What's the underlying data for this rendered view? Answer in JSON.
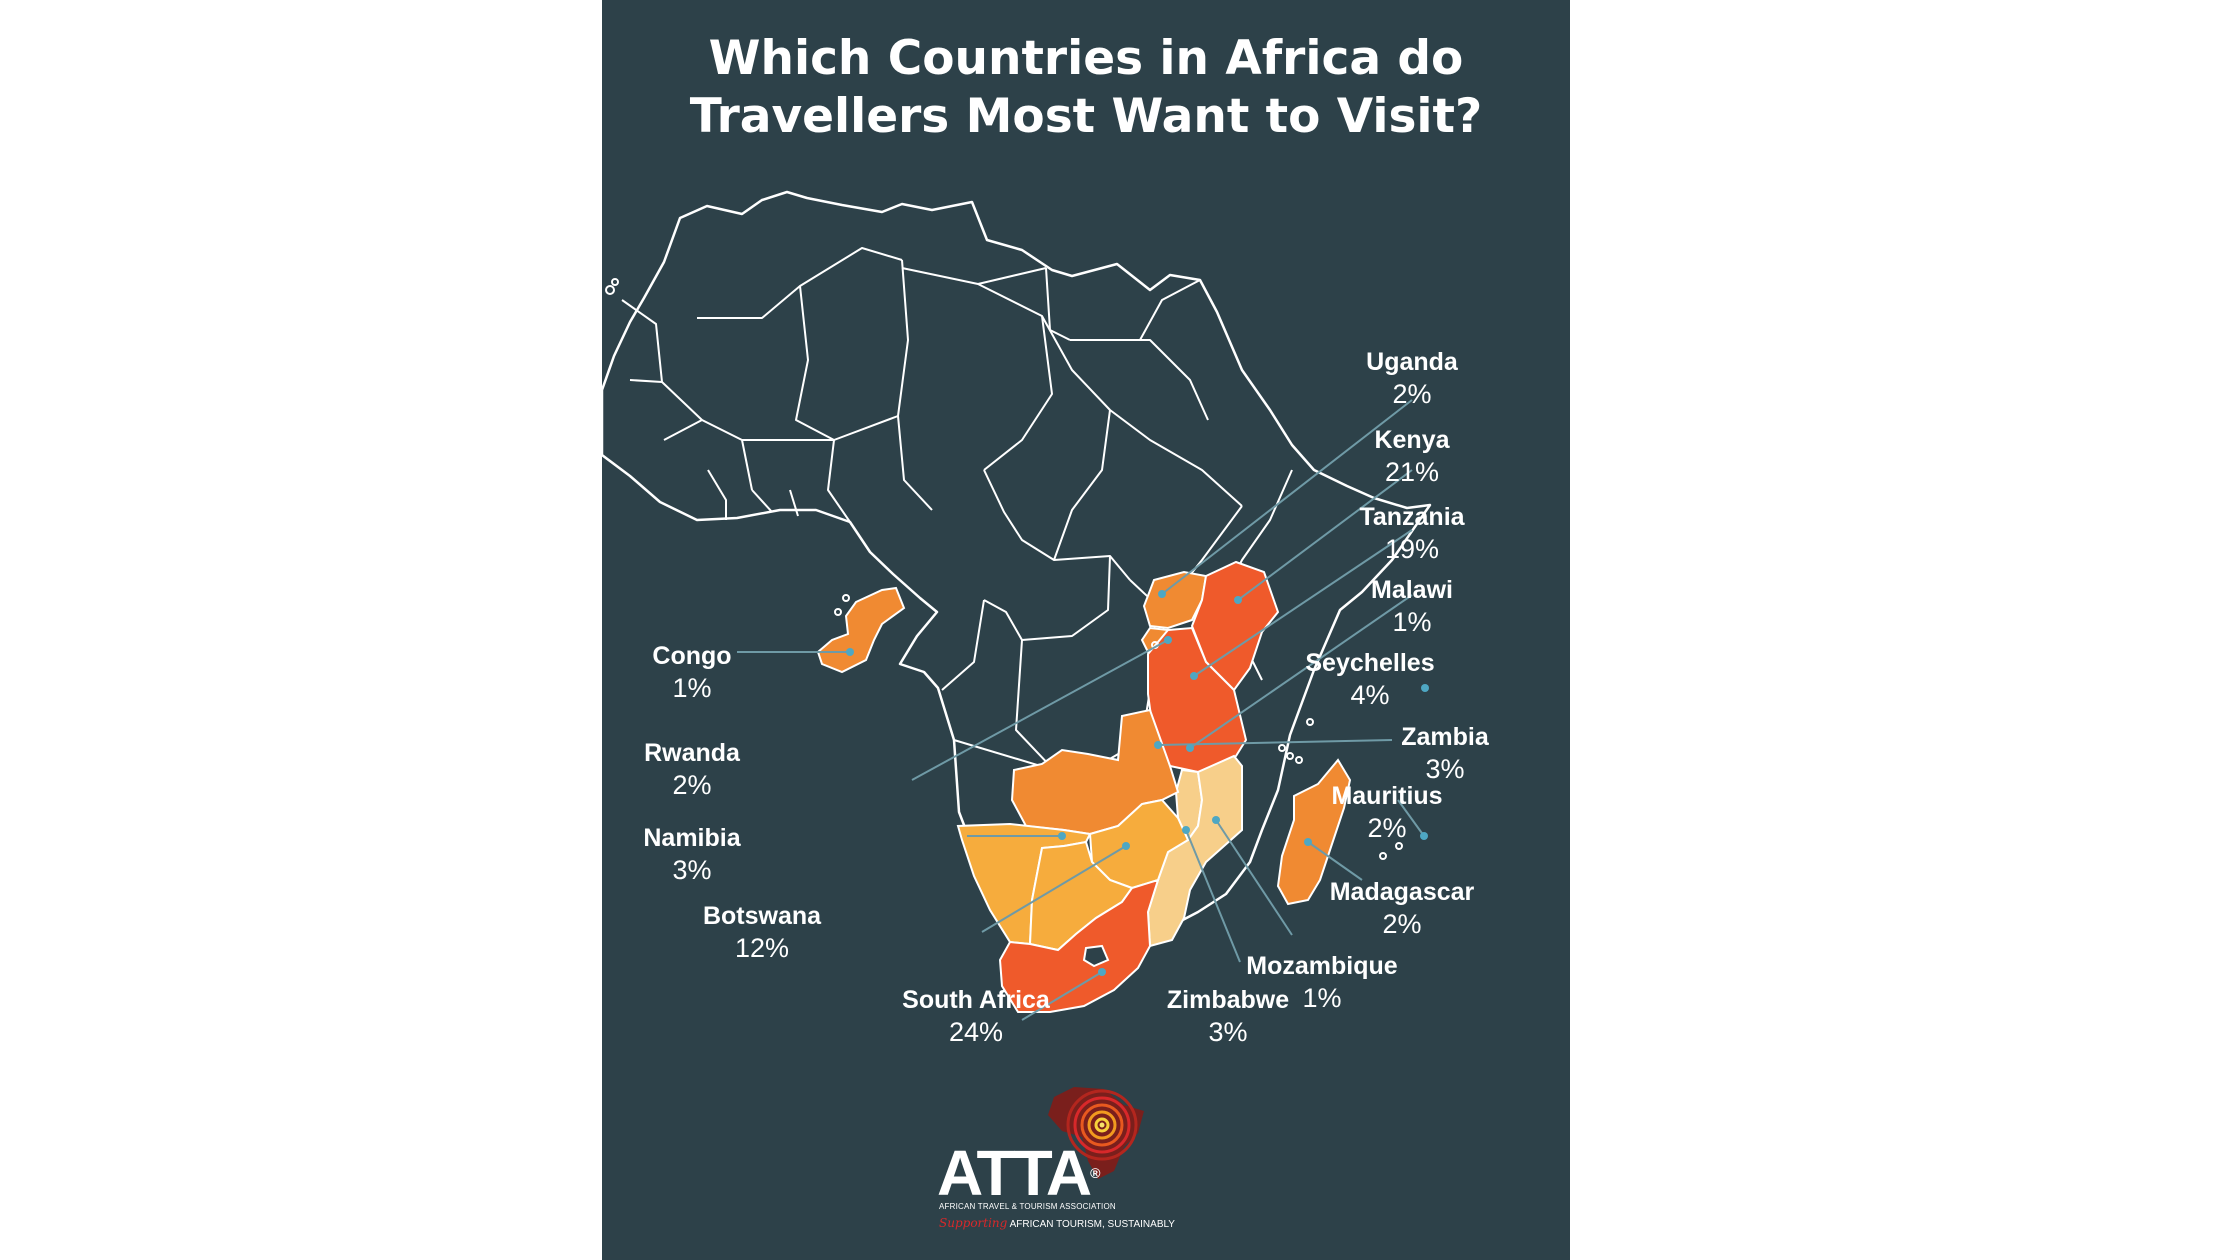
{
  "title_line1": "Which Countries in Africa do",
  "title_line2": "Travellers Most Want to Visit?",
  "colors": {
    "background": "#2d4149",
    "outline": "#ffffff",
    "leader_line": "#6f9aa6",
    "marker_dot": "#4ea7c3",
    "tier_high": "#ef5a2b",
    "tier_mid": "#f08a32",
    "tier_low": "#f6ac3d",
    "tier_min": "#f7cf8a"
  },
  "countries": [
    {
      "name": "Uganda",
      "value": "2%",
      "percent": 2
    },
    {
      "name": "Kenya",
      "value": "21%",
      "percent": 21
    },
    {
      "name": "Tanzania",
      "value": "19%",
      "percent": 19
    },
    {
      "name": "Malawi",
      "value": "1%",
      "percent": 1
    },
    {
      "name": "Seychelles",
      "value": "4%",
      "percent": 4
    },
    {
      "name": "Zambia",
      "value": "3%",
      "percent": 3
    },
    {
      "name": "Mauritius",
      "value": "2%",
      "percent": 2
    },
    {
      "name": "Madagascar",
      "value": "2%",
      "percent": 2
    },
    {
      "name": "Mozambique",
      "value": "1%",
      "percent": 1
    },
    {
      "name": "Zimbabwe",
      "value": "3%",
      "percent": 3
    },
    {
      "name": "South Africa",
      "value": "24%",
      "percent": 24
    },
    {
      "name": "Botswana",
      "value": "12%",
      "percent": 12
    },
    {
      "name": "Namibia",
      "value": "3%",
      "percent": 3
    },
    {
      "name": "Rwanda",
      "value": "2%",
      "percent": 2
    },
    {
      "name": "Congo",
      "value": "1%",
      "percent": 1
    }
  ],
  "logo": {
    "wordmark": "ATTA",
    "registered": "®",
    "subtitle": "AFRICAN TRAVEL & TOURISM ASSOCIATION",
    "tagline_script": "Supporting",
    "tagline_rest": "AFRICAN TOURISM, SUSTAINABLY"
  }
}
